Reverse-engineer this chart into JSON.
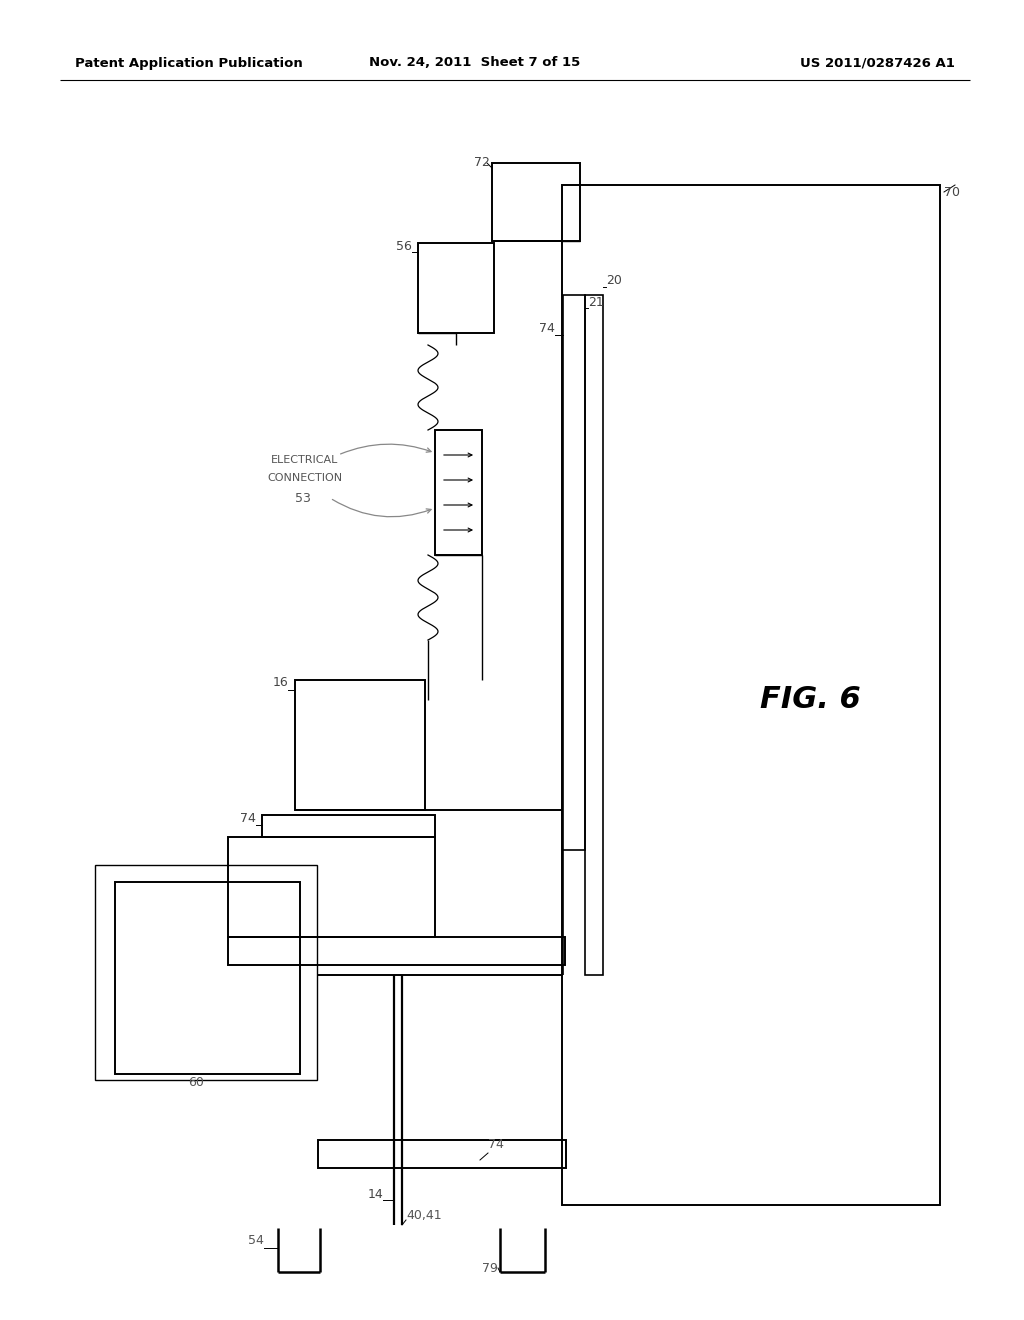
{
  "header_left": "Patent Application Publication",
  "header_mid": "Nov. 24, 2011  Sheet 7 of 15",
  "header_right": "US 2011/0287426 A1",
  "fig_label": "FIG. 6",
  "bg_color": "#ffffff"
}
